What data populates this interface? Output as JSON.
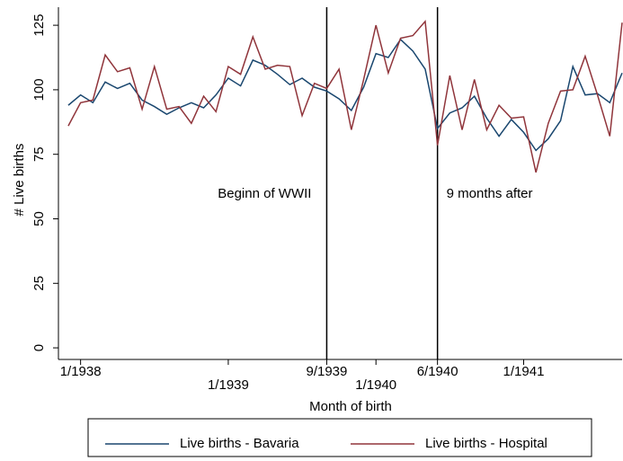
{
  "chart_data": {
    "type": "line",
    "x_label": "Month of birth",
    "y_label": "# Live births",
    "x": [
      -265,
      -264,
      -263,
      -262,
      -261,
      -260,
      -259,
      -258,
      -257,
      -256,
      -255,
      -254,
      -253,
      -252,
      -251,
      -250,
      -249,
      -248,
      -247,
      -246,
      -245,
      -244,
      -243,
      -242,
      -241,
      -240,
      -239,
      -238,
      -237,
      -236,
      -235,
      -234,
      -233,
      -232,
      -231,
      -230,
      -229,
      -228,
      -227,
      -226,
      -225,
      -224,
      -223,
      -222,
      -221,
      -220
    ],
    "series": [
      {
        "name": "Live births - Bavaria",
        "color": "#1a476f",
        "values": [
          94,
          98,
          95,
          103,
          100.5,
          102.5,
          96,
          93.5,
          90.5,
          93,
          95,
          93,
          98,
          104.5,
          101.5,
          111.5,
          109.5,
          106,
          102,
          104.5,
          101,
          99.5,
          96.5,
          92,
          101,
          114,
          112.5,
          119.5,
          115,
          108,
          85,
          91,
          93,
          97.5,
          89,
          82,
          88.5,
          83.5,
          76.5,
          81,
          88,
          109,
          98,
          98.5,
          95,
          106.5
        ]
      },
      {
        "name": "Live births - Hospital",
        "color": "#90353b",
        "values": [
          86,
          95,
          96,
          113.5,
          107,
          108.5,
          92.5,
          109,
          92.5,
          93.5,
          87,
          97.5,
          91.5,
          109,
          106,
          120.5,
          108,
          109.5,
          109,
          90,
          102.5,
          100.5,
          108,
          84.5,
          104,
          125,
          106.5,
          120,
          121,
          126.5,
          78.5,
          105.5,
          84.5,
          104,
          84.5,
          94,
          89,
          89.5,
          68,
          87,
          99.5,
          100,
          113,
          98,
          82,
          126
        ]
      }
    ],
    "xlim": [
      -265.8,
      -220
    ],
    "xticks": [
      {
        "value": -264,
        "label": "1/1938"
      },
      {
        "value": -252,
        "label": "1/1939"
      },
      {
        "value": -244,
        "label": "9/1939"
      },
      {
        "value": -240,
        "label": "1/1940"
      },
      {
        "value": -235,
        "label": "6/1940"
      },
      {
        "value": -228,
        "label": "1/1941"
      }
    ],
    "ylim": [
      -4.5,
      132
    ],
    "yticks": [
      0,
      25,
      50,
      75,
      100,
      125
    ],
    "vlines": [
      -244,
      -235
    ],
    "annotations": [
      "Beginn of WWII",
      "9 months after"
    ],
    "legend": "bottom"
  }
}
